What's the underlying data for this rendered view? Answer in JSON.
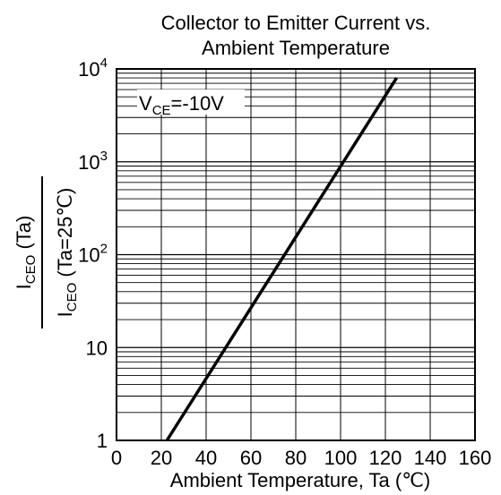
{
  "chart_data": {
    "type": "line",
    "title_lines": [
      "Collector to Emitter Current  vs.",
      "Ambient Temperature"
    ],
    "xlabel": "Ambient Temperature, Ta (℃)",
    "ylabel": {
      "numerator": {
        "main": "I",
        "sub": "CEO",
        "rest": " (Ta)"
      },
      "denominator": {
        "main": "I",
        "sub": "CEO",
        "rest": " (Ta=25℃)"
      }
    },
    "annotation": {
      "main": "V",
      "sub": "CE",
      "rest": "=-10V"
    },
    "xlim": [
      0,
      160
    ],
    "ylim": [
      1,
      10000
    ],
    "y_scale": "log",
    "grid": true,
    "x_ticks": [
      0,
      20,
      40,
      60,
      80,
      100,
      120,
      140,
      160
    ],
    "y_ticks": [
      {
        "value": 1,
        "base": "1",
        "exp": ""
      },
      {
        "value": 10,
        "base": "10",
        "exp": ""
      },
      {
        "value": 100,
        "base": "10",
        "exp": "2"
      },
      {
        "value": 1000,
        "base": "10",
        "exp": "3"
      },
      {
        "value": 10000,
        "base": "10",
        "exp": "4"
      }
    ],
    "series": [
      {
        "x": [
          22.5,
          125
        ],
        "y": [
          1,
          8000
        ]
      }
    ]
  }
}
